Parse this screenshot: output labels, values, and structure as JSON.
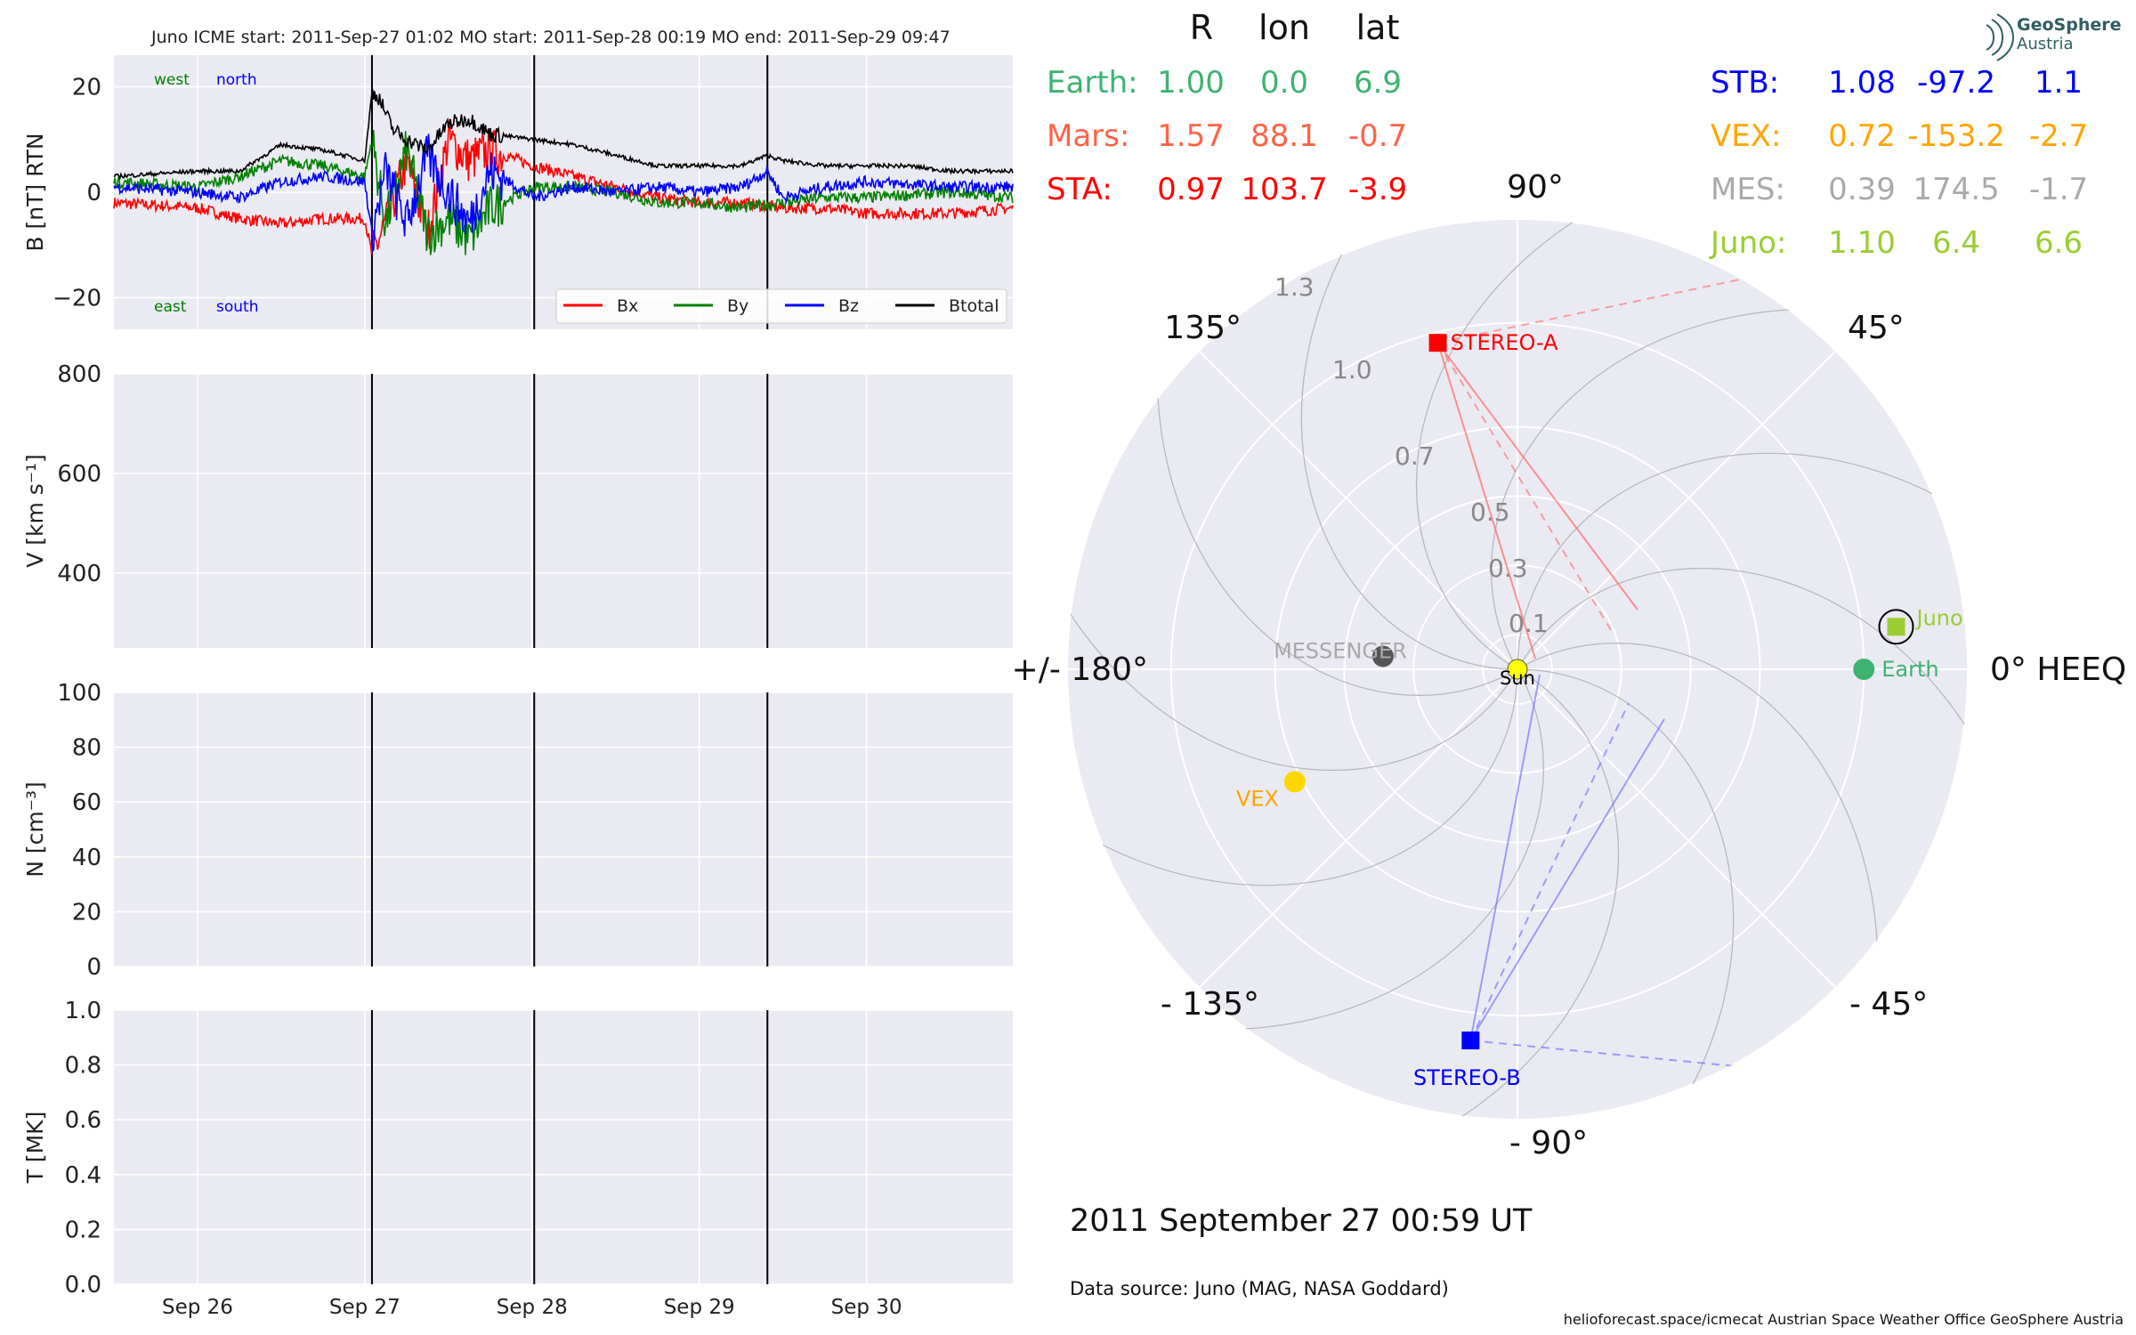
{
  "header": {
    "title": "Juno    ICME start: 2011-Sep-27 01:02   MO start: 2011-Sep-28 00:19   MO end: 2011-Sep-29 09:47"
  },
  "logo": {
    "line1": "GeoSphere",
    "line2": "Austria"
  },
  "footer": {
    "date": "2011 September 27  00:59 UT",
    "source": "Data source: Juno (MAG, NASA Goddard)",
    "credit": "helioforecast.space/icmecat   Austrian Space Weather Office   GeoSphere Austria"
  },
  "table": {
    "headers": [
      "R",
      "lon",
      "lat"
    ],
    "left": [
      {
        "name": "Earth:",
        "r": "1.00",
        "lon": "0.0",
        "lat": "6.9",
        "color": "#3cb371"
      },
      {
        "name": "Mars:",
        "r": "1.57",
        "lon": "88.1",
        "lat": "-0.7",
        "color": "#ff6347"
      },
      {
        "name": "STA:",
        "r": "0.97",
        "lon": "103.7",
        "lat": "-3.9",
        "color": "#ff0000"
      }
    ],
    "right": [
      {
        "name": "STB:",
        "r": "1.08",
        "lon": "-97.2",
        "lat": "1.1",
        "color": "#0000ff"
      },
      {
        "name": "VEX:",
        "r": "0.72",
        "lon": "-153.2",
        "lat": "-2.7",
        "color": "#ffa500"
      },
      {
        "name": "MES:",
        "r": "0.39",
        "lon": "174.5",
        "lat": "-1.7",
        "color": "#a9a9a9"
      },
      {
        "name": "Juno:",
        "r": "1.10",
        "lon": "6.4",
        "lat": "6.6",
        "color": "#9acd32"
      }
    ]
  },
  "chart_data": [
    {
      "type": "line",
      "panel": "magnetic field",
      "ylabel": "B [nT] RTN",
      "ylim": [
        -26,
        26
      ],
      "yticks": [
        -20,
        0,
        20
      ],
      "xlim": [
        "2011-09-25 12:00",
        "2011-09-30 21:00"
      ],
      "xticks": [
        "Sep 26",
        "Sep 27",
        "Sep 28",
        "Sep 29",
        "Sep 30"
      ],
      "annotations": {
        "west": "west",
        "north": "north",
        "east": "east",
        "south": "south"
      },
      "vlines": [
        "2011-09-27 01:02",
        "2011-09-28 00:19",
        "2011-09-29 09:47"
      ],
      "legend": {
        "placement": "lower right",
        "entries": [
          "Bx",
          "By",
          "Bz",
          "Btotal"
        ]
      },
      "series": [
        {
          "name": "Btotal",
          "color": "#000000",
          "x": [
            "2011-09-25 12:00",
            "2011-09-26 00:00",
            "2011-09-26 06:00",
            "2011-09-26 12:00",
            "2011-09-26 18:00",
            "2011-09-27 00:00",
            "2011-09-27 01:02",
            "2011-09-27 02:00",
            "2011-09-27 04:00",
            "2011-09-27 06:00",
            "2011-09-27 09:00",
            "2011-09-27 12:00",
            "2011-09-27 15:00",
            "2011-09-27 18:00",
            "2011-09-28 00:19",
            "2011-09-28 06:00",
            "2011-09-28 12:00",
            "2011-09-28 18:00",
            "2011-09-29 00:00",
            "2011-09-29 06:00",
            "2011-09-29 09:47",
            "2011-09-29 12:00",
            "2011-09-29 18:00",
            "2011-09-30 00:00",
            "2011-09-30 06:00",
            "2011-09-30 12:00",
            "2011-09-30 18:00",
            "2011-09-30 21:00"
          ],
          "values": [
            3,
            4,
            4,
            9,
            8,
            6,
            19,
            18,
            12,
            10,
            8,
            13,
            14,
            11,
            10,
            9,
            7,
            5,
            5,
            5,
            7,
            6,
            5,
            5,
            5,
            4,
            4,
            4
          ]
        },
        {
          "name": "Bx",
          "color": "#ff0000",
          "x": [
            "2011-09-25 12:00",
            "2011-09-26 00:00",
            "2011-09-26 06:00",
            "2011-09-26 12:00",
            "2011-09-26 18:00",
            "2011-09-27 00:00",
            "2011-09-27 01:02",
            "2011-09-27 03:00",
            "2011-09-27 06:00",
            "2011-09-27 09:00",
            "2011-09-27 12:00",
            "2011-09-27 15:00",
            "2011-09-27 18:00",
            "2011-09-28 00:19",
            "2011-09-28 06:00",
            "2011-09-28 12:00",
            "2011-09-28 18:00",
            "2011-09-29 00:00",
            "2011-09-29 06:00",
            "2011-09-29 12:00",
            "2011-09-29 18:00",
            "2011-09-30 00:00",
            "2011-09-30 12:00",
            "2011-09-30 21:00"
          ],
          "values": [
            -2,
            -3,
            -5,
            -6,
            -5,
            -5,
            -12,
            -6,
            6,
            -8,
            10,
            6,
            8,
            5,
            3,
            1,
            -1,
            -2,
            -2,
            -3,
            -3,
            -4,
            -4,
            -3
          ]
        },
        {
          "name": "By",
          "color": "#008000",
          "x": [
            "2011-09-25 12:00",
            "2011-09-26 00:00",
            "2011-09-26 06:00",
            "2011-09-26 12:00",
            "2011-09-26 18:00",
            "2011-09-27 00:00",
            "2011-09-27 01:02",
            "2011-09-27 03:00",
            "2011-09-27 06:00",
            "2011-09-27 09:00",
            "2011-09-27 12:00",
            "2011-09-27 15:00",
            "2011-09-27 18:00",
            "2011-09-28 00:19",
            "2011-09-28 06:00",
            "2011-09-28 12:00",
            "2011-09-28 18:00",
            "2011-09-29 00:00",
            "2011-09-29 06:00",
            "2011-09-29 12:00",
            "2011-09-29 18:00",
            "2011-09-30 00:00",
            "2011-09-30 12:00",
            "2011-09-30 21:00"
          ],
          "values": [
            2,
            1,
            3,
            6,
            5,
            3,
            10,
            -6,
            8,
            -8,
            -5,
            -9,
            -3,
            1,
            1,
            0,
            -2,
            -2,
            -3,
            -2,
            -1,
            -1,
            0,
            -1
          ]
        },
        {
          "name": "Bz",
          "color": "#0000ff",
          "x": [
            "2011-09-25 12:00",
            "2011-09-26 00:00",
            "2011-09-26 06:00",
            "2011-09-26 12:00",
            "2011-09-26 18:00",
            "2011-09-27 00:00",
            "2011-09-27 01:02",
            "2011-09-27 03:00",
            "2011-09-27 06:00",
            "2011-09-27 09:00",
            "2011-09-27 12:00",
            "2011-09-27 15:00",
            "2011-09-27 18:00",
            "2011-09-28 00:19",
            "2011-09-28 06:00",
            "2011-09-28 12:00",
            "2011-09-28 18:00",
            "2011-09-29 00:00",
            "2011-09-29 06:00",
            "2011-09-29 09:47",
            "2011-09-29 12:00",
            "2011-09-29 18:00",
            "2011-09-30 00:00",
            "2011-09-30 12:00",
            "2011-09-30 21:00"
          ],
          "values": [
            1,
            0,
            -1,
            2,
            3,
            2,
            -8,
            4,
            -6,
            7,
            0,
            -6,
            4,
            -1,
            1,
            0,
            1,
            0,
            1,
            4,
            -1,
            1,
            2,
            1,
            1
          ]
        }
      ]
    },
    {
      "type": "line",
      "panel": "speed",
      "ylabel": "V [km s⁻¹]",
      "ylim": [
        250,
        800
      ],
      "yticks": [
        400,
        600,
        800
      ],
      "xticks": [
        "Sep 26",
        "Sep 27",
        "Sep 28",
        "Sep 29",
        "Sep 30"
      ],
      "series": []
    },
    {
      "type": "line",
      "panel": "density",
      "ylabel": "N [cm⁻³]",
      "ylim": [
        0,
        100
      ],
      "yticks": [
        0,
        20,
        40,
        60,
        80,
        100
      ],
      "xticks": [
        "Sep 26",
        "Sep 27",
        "Sep 28",
        "Sep 29",
        "Sep 30"
      ],
      "series": []
    },
    {
      "type": "line",
      "panel": "temperature",
      "ylabel": "T [MK]",
      "ylim": [
        0,
        1
      ],
      "yticks": [
        0.0,
        0.2,
        0.4,
        0.6,
        0.8,
        1.0
      ],
      "xticks": [
        "Sep 26",
        "Sep 27",
        "Sep 28",
        "Sep 29",
        "Sep 30"
      ],
      "series": []
    },
    {
      "type": "scatter",
      "panel": "polar HEEQ plot",
      "radial_ticks": [
        "0.1",
        "0.3",
        "0.5",
        "0.7",
        "1.0",
        "1.3"
      ],
      "angle_labels": [
        {
          "deg": 0,
          "text": "0° HEEQ"
        },
        {
          "deg": 45,
          "text": "45°"
        },
        {
          "deg": 90,
          "text": "90°"
        },
        {
          "deg": 135,
          "text": "135°"
        },
        {
          "deg": 180,
          "text": "+/- 180°"
        },
        {
          "deg": -135,
          "text": "- 135°"
        },
        {
          "deg": -90,
          "text": "- 90°"
        },
        {
          "deg": -45,
          "text": "- 45°"
        }
      ],
      "bodies": [
        {
          "name": "Sun",
          "label": "Sun",
          "r": 0.0,
          "lon": 0,
          "color": "#ffff00",
          "marker": "circle"
        },
        {
          "name": "Earth",
          "label": "Earth",
          "r": 1.0,
          "lon": 0.0,
          "color": "#3cb371",
          "marker": "circle"
        },
        {
          "name": "Juno",
          "label": "Juno",
          "r": 1.1,
          "lon": 6.4,
          "color": "#9acd32",
          "marker": "square"
        },
        {
          "name": "STEREO-A",
          "label": "STEREO-A",
          "r": 0.97,
          "lon": 103.7,
          "color": "#ff0000",
          "marker": "square"
        },
        {
          "name": "STEREO-B",
          "label": "STEREO-B",
          "r": 1.08,
          "lon": -97.2,
          "color": "#0000ff",
          "marker": "square"
        },
        {
          "name": "VEX",
          "label": "VEX",
          "r": 0.72,
          "lon": -153.2,
          "color": "#ffd700",
          "marker": "circle"
        },
        {
          "name": "MESSENGER",
          "label": "MESSENGER",
          "r": 0.39,
          "lon": 174.5,
          "color": "#555555",
          "marker": "circle"
        }
      ]
    }
  ]
}
